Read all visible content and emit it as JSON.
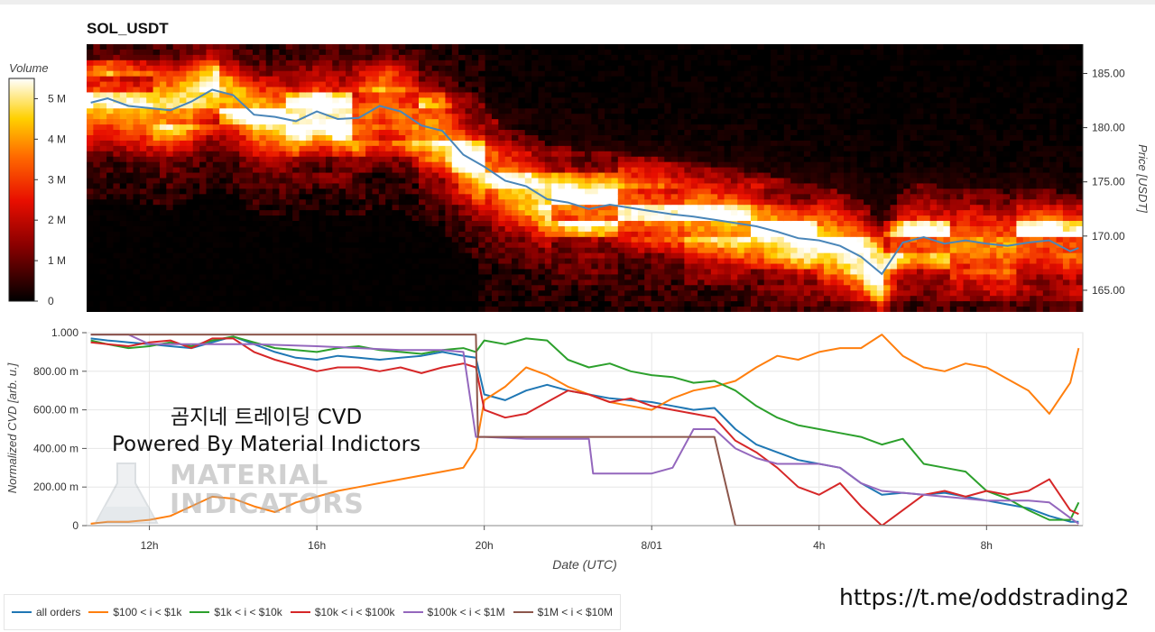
{
  "title": "SOL_USDT",
  "watermark": {
    "line1": "곰지네 트레이딩 CVD",
    "line2": "Powered By Material Indictors",
    "logo_line1": "MATERIAL",
    "logo_line2": "INDICATORS"
  },
  "link": "https://t.me/oddstrading2",
  "chart_data": [
    {
      "type": "heatmap",
      "title": "SOL_USDT",
      "colorbar": {
        "label": "Volume",
        "ticks": [
          "0",
          "1 M",
          "2 M",
          "3 M",
          "4 M",
          "5 M"
        ],
        "range": [
          0,
          5.5
        ]
      },
      "ylabel": "Price [USDT]",
      "ylim": [
        163.0,
        187.7
      ],
      "yticks": [
        "165.00",
        "170.00",
        "175.00",
        "180.00",
        "185.00"
      ],
      "xlim": [
        10.5,
        34.3
      ],
      "price_line": {
        "color": "#4a86b8",
        "x": [
          10.6,
          11.0,
          11.5,
          12.0,
          12.5,
          13.0,
          13.5,
          14.0,
          14.5,
          15.0,
          15.5,
          16.0,
          16.5,
          17.0,
          17.5,
          18.0,
          18.5,
          19.0,
          19.5,
          20.0,
          20.5,
          21.0,
          21.5,
          22.0,
          22.5,
          23.0,
          23.5,
          24.0,
          24.5,
          25.0,
          25.5,
          26.0,
          26.5,
          27.0,
          27.5,
          28.0,
          28.5,
          29.0,
          29.5,
          30.0,
          30.5,
          31.0,
          31.5,
          32.0,
          32.5,
          33.0,
          33.5,
          34.0,
          34.2
        ],
        "y": [
          182.3,
          182.7,
          182.0,
          181.8,
          181.6,
          182.4,
          183.5,
          183.0,
          181.2,
          181.0,
          180.6,
          181.5,
          180.8,
          180.9,
          182.0,
          181.5,
          180.2,
          179.7,
          177.5,
          176.4,
          175.1,
          174.6,
          173.4,
          173.1,
          172.5,
          172.9,
          172.6,
          172.3,
          172.0,
          171.8,
          171.5,
          171.2,
          170.9,
          170.4,
          169.8,
          169.6,
          169.1,
          168.1,
          166.5,
          169.4,
          169.9,
          169.3,
          169.6,
          169.3,
          169.1,
          169.4,
          169.6,
          168.6,
          168.9
        ]
      }
    },
    {
      "type": "line",
      "ylabel": "Normalized CVD [arb. u.]",
      "xlabel": "Date (UTC)",
      "ylim": [
        0,
        1.0
      ],
      "yticks": [
        "0",
        "200.00 m",
        "400.00 m",
        "600.00 m",
        "800.00 m",
        "1.000"
      ],
      "xticks": [
        {
          "label": "12h",
          "x": 12
        },
        {
          "label": "16h",
          "x": 16
        },
        {
          "label": "20h",
          "x": 20
        },
        {
          "label": "8/01",
          "x": 24
        },
        {
          "label": "4h",
          "x": 28
        },
        {
          "label": "8h",
          "x": 32
        }
      ],
      "xlim": [
        10.5,
        34.3
      ],
      "series": [
        {
          "name": "all orders",
          "color": "#1f77b4",
          "x": [
            10.6,
            11.0,
            11.5,
            12.0,
            12.5,
            13.0,
            13.5,
            14.0,
            14.5,
            15.0,
            15.5,
            16.0,
            16.5,
            17.0,
            17.5,
            18.0,
            18.5,
            19.0,
            19.5,
            19.8,
            20.0,
            20.5,
            21.0,
            21.5,
            22.0,
            22.5,
            23.0,
            23.5,
            24.0,
            24.5,
            25.0,
            25.5,
            26.0,
            26.5,
            27.0,
            27.5,
            28.0,
            28.5,
            29.0,
            29.5,
            30.0,
            30.5,
            31.0,
            31.5,
            32.0,
            32.5,
            33.0,
            33.5,
            34.0,
            34.2
          ],
          "y": [
            0.97,
            0.96,
            0.95,
            0.94,
            0.93,
            0.92,
            0.95,
            0.98,
            0.94,
            0.9,
            0.87,
            0.86,
            0.88,
            0.87,
            0.86,
            0.87,
            0.88,
            0.9,
            0.88,
            0.87,
            0.68,
            0.65,
            0.7,
            0.73,
            0.7,
            0.68,
            0.66,
            0.65,
            0.64,
            0.62,
            0.6,
            0.61,
            0.5,
            0.42,
            0.38,
            0.34,
            0.32,
            0.3,
            0.22,
            0.16,
            0.17,
            0.16,
            0.17,
            0.15,
            0.13,
            0.11,
            0.09,
            0.05,
            0.02,
            0.02
          ]
        },
        {
          "name": "$100 < i < $1k",
          "color": "#ff7f0e",
          "x": [
            10.6,
            11.0,
            11.5,
            12.0,
            12.5,
            13.0,
            13.5,
            14.0,
            14.5,
            15.0,
            15.5,
            16.0,
            16.5,
            17.0,
            17.5,
            18.0,
            18.5,
            19.0,
            19.5,
            19.8,
            20.0,
            20.5,
            21.0,
            21.5,
            22.0,
            22.5,
            23.0,
            23.5,
            24.0,
            24.5,
            25.0,
            25.5,
            26.0,
            26.5,
            27.0,
            27.5,
            28.0,
            28.5,
            29.0,
            29.5,
            30.0,
            30.5,
            31.0,
            31.5,
            32.0,
            32.5,
            33.0,
            33.5,
            34.0,
            34.2
          ],
          "y": [
            0.01,
            0.02,
            0.02,
            0.03,
            0.05,
            0.1,
            0.15,
            0.14,
            0.1,
            0.07,
            0.12,
            0.15,
            0.18,
            0.2,
            0.22,
            0.24,
            0.26,
            0.28,
            0.3,
            0.4,
            0.65,
            0.72,
            0.82,
            0.78,
            0.72,
            0.68,
            0.64,
            0.62,
            0.6,
            0.66,
            0.7,
            0.72,
            0.75,
            0.82,
            0.88,
            0.86,
            0.9,
            0.92,
            0.92,
            0.99,
            0.88,
            0.82,
            0.8,
            0.84,
            0.82,
            0.76,
            0.7,
            0.58,
            0.74,
            0.92
          ]
        },
        {
          "name": "$1k < i < $10k",
          "color": "#2ca02c",
          "x": [
            10.6,
            11.0,
            11.5,
            12.0,
            12.5,
            13.0,
            13.5,
            14.0,
            14.5,
            15.0,
            15.5,
            16.0,
            16.5,
            17.0,
            17.5,
            18.0,
            18.5,
            19.0,
            19.5,
            19.8,
            20.0,
            20.5,
            21.0,
            21.5,
            22.0,
            22.5,
            23.0,
            23.5,
            24.0,
            24.5,
            25.0,
            25.5,
            26.0,
            26.5,
            27.0,
            27.5,
            28.0,
            28.5,
            29.0,
            29.5,
            30.0,
            30.5,
            31.0,
            31.5,
            32.0,
            32.5,
            33.0,
            33.5,
            34.0,
            34.2
          ],
          "y": [
            0.96,
            0.94,
            0.92,
            0.93,
            0.95,
            0.93,
            0.96,
            0.98,
            0.95,
            0.92,
            0.91,
            0.9,
            0.92,
            0.93,
            0.91,
            0.9,
            0.89,
            0.91,
            0.92,
            0.9,
            0.96,
            0.94,
            0.97,
            0.96,
            0.86,
            0.82,
            0.84,
            0.8,
            0.78,
            0.77,
            0.74,
            0.75,
            0.7,
            0.62,
            0.56,
            0.52,
            0.5,
            0.48,
            0.46,
            0.42,
            0.45,
            0.32,
            0.3,
            0.28,
            0.18,
            0.14,
            0.08,
            0.03,
            0.03,
            0.12
          ]
        },
        {
          "name": "$10k < i < $100k",
          "color": "#d62728",
          "x": [
            10.6,
            11.0,
            11.5,
            12.0,
            12.5,
            13.0,
            13.5,
            14.0,
            14.5,
            15.0,
            15.5,
            16.0,
            16.5,
            17.0,
            17.5,
            18.0,
            18.5,
            19.0,
            19.5,
            19.8,
            20.0,
            20.5,
            21.0,
            21.5,
            22.0,
            22.5,
            23.0,
            23.5,
            24.0,
            24.5,
            25.0,
            25.5,
            26.0,
            26.5,
            27.0,
            27.5,
            28.0,
            28.5,
            29.0,
            29.5,
            30.0,
            30.5,
            31.0,
            31.5,
            32.0,
            32.5,
            33.0,
            33.5,
            34.0,
            34.2
          ],
          "y": [
            0.95,
            0.94,
            0.93,
            0.95,
            0.96,
            0.92,
            0.97,
            0.97,
            0.9,
            0.86,
            0.83,
            0.8,
            0.82,
            0.82,
            0.8,
            0.82,
            0.79,
            0.82,
            0.84,
            0.82,
            0.6,
            0.56,
            0.58,
            0.64,
            0.7,
            0.68,
            0.64,
            0.66,
            0.62,
            0.6,
            0.58,
            0.56,
            0.44,
            0.38,
            0.3,
            0.2,
            0.16,
            0.22,
            0.1,
            0.0,
            0.08,
            0.16,
            0.18,
            0.15,
            0.18,
            0.16,
            0.18,
            0.24,
            0.08,
            0.06
          ]
        },
        {
          "name": "$100k < i < $1M",
          "color": "#9467bd",
          "x": [
            10.6,
            11.5,
            12.0,
            12.5,
            13.5,
            14.0,
            14.5,
            16.0,
            17.0,
            18.0,
            19.0,
            19.5,
            19.8,
            20.0,
            21.0,
            22.0,
            22.5,
            22.6,
            24.0,
            24.5,
            25.0,
            25.5,
            26.0,
            26.5,
            27.0,
            28.0,
            28.5,
            29.0,
            29.5,
            30.0,
            30.5,
            31.0,
            31.5,
            32.0,
            32.5,
            33.0,
            33.5,
            34.0,
            34.2
          ],
          "y": [
            0.99,
            0.99,
            0.94,
            0.94,
            0.94,
            0.94,
            0.94,
            0.93,
            0.92,
            0.91,
            0.91,
            0.9,
            0.46,
            0.46,
            0.45,
            0.45,
            0.45,
            0.27,
            0.27,
            0.3,
            0.5,
            0.5,
            0.4,
            0.35,
            0.32,
            0.32,
            0.3,
            0.22,
            0.18,
            0.17,
            0.16,
            0.15,
            0.14,
            0.13,
            0.13,
            0.13,
            0.12,
            0.04,
            0.01
          ]
        },
        {
          "name": "$1M < i < $10M",
          "color": "#8c564b",
          "x": [
            10.6,
            19.0,
            19.8,
            19.85,
            25.0,
            25.5,
            26.0,
            27.0,
            30.0,
            34.2
          ],
          "y": [
            0.99,
            0.99,
            0.99,
            0.46,
            0.46,
            0.46,
            0.0,
            0.0,
            0.0,
            0.0
          ]
        }
      ]
    }
  ]
}
